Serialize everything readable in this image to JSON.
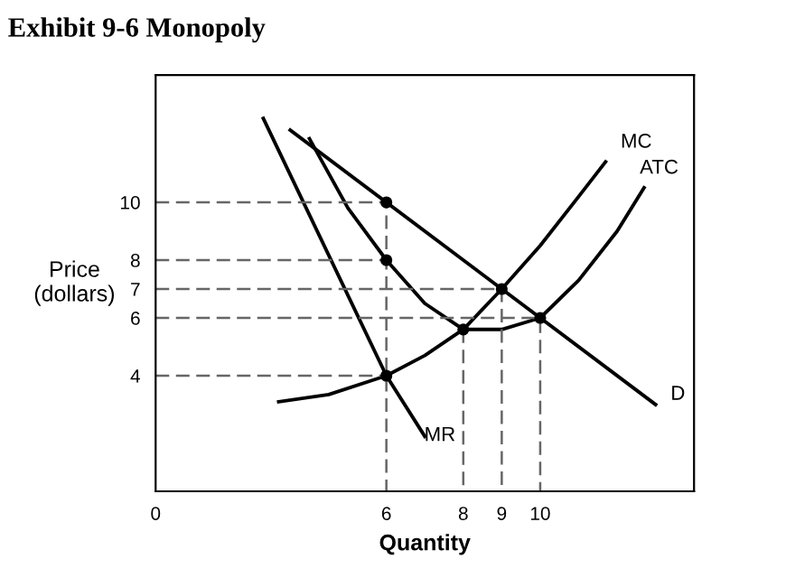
{
  "chart_data": {
    "type": "line",
    "title": "Exhibit 9-6 Monopoly",
    "xlabel": "Quantity",
    "ylabel": "Price\n(dollars)",
    "xlim": [
      0,
      14
    ],
    "ylim": [
      0,
      14.4
    ],
    "xticks": [
      0,
      6,
      8,
      9,
      10
    ],
    "yticks": [
      4,
      6,
      7,
      8,
      10
    ],
    "grid": false,
    "legend": false,
    "series": [
      {
        "name": "D",
        "color": "#000000",
        "x": [
          3.5,
          13
        ],
        "values": [
          12.5,
          3
        ]
      },
      {
        "name": "MR",
        "color": "#000000",
        "x": [
          2.8,
          6,
          7
        ],
        "values": [
          12.9,
          4,
          1.9
        ]
      },
      {
        "name": "MC",
        "color": "#000000",
        "x": [
          3.2,
          4.5,
          6,
          7,
          8,
          9,
          10,
          11,
          11.7
        ],
        "values": [
          3.1,
          3.35,
          4,
          4.7,
          5.6,
          7,
          8.5,
          10.2,
          11.4
        ]
      },
      {
        "name": "ATC",
        "color": "#000000",
        "x": [
          4,
          5,
          6,
          7,
          8,
          9,
          10,
          11,
          12,
          12.7
        ],
        "values": [
          12.2,
          9.8,
          8,
          6.5,
          5.6,
          5.6,
          6,
          7.3,
          9,
          10.5
        ]
      },
      {
        "color": "#666666",
        "line_style": "dashed",
        "x": [
          0,
          6,
          6
        ],
        "values": [
          10,
          10,
          0
        ]
      },
      {
        "color": "#666666",
        "line_style": "dashed",
        "x": [
          0,
          6
        ],
        "values": [
          8,
          8
        ]
      },
      {
        "color": "#666666",
        "line_style": "dashed",
        "x": [
          0,
          9,
          9
        ],
        "values": [
          7,
          7,
          0
        ]
      },
      {
        "color": "#666666",
        "line_style": "dashed",
        "x": [
          0,
          10,
          10
        ],
        "values": [
          6,
          6,
          0
        ]
      },
      {
        "color": "#666666",
        "line_style": "dashed",
        "x": [
          0,
          6
        ],
        "values": [
          4,
          4
        ]
      },
      {
        "color": "#666666",
        "line_style": "dashed",
        "x": [
          8,
          8
        ],
        "values": [
          5.6,
          0
        ]
      },
      {
        "type": "scatter",
        "marker": "circle",
        "color": "#000000",
        "x": [
          6,
          6,
          6,
          8,
          9,
          10
        ],
        "values": [
          10,
          8,
          4,
          5.6,
          7,
          6
        ]
      }
    ]
  }
}
